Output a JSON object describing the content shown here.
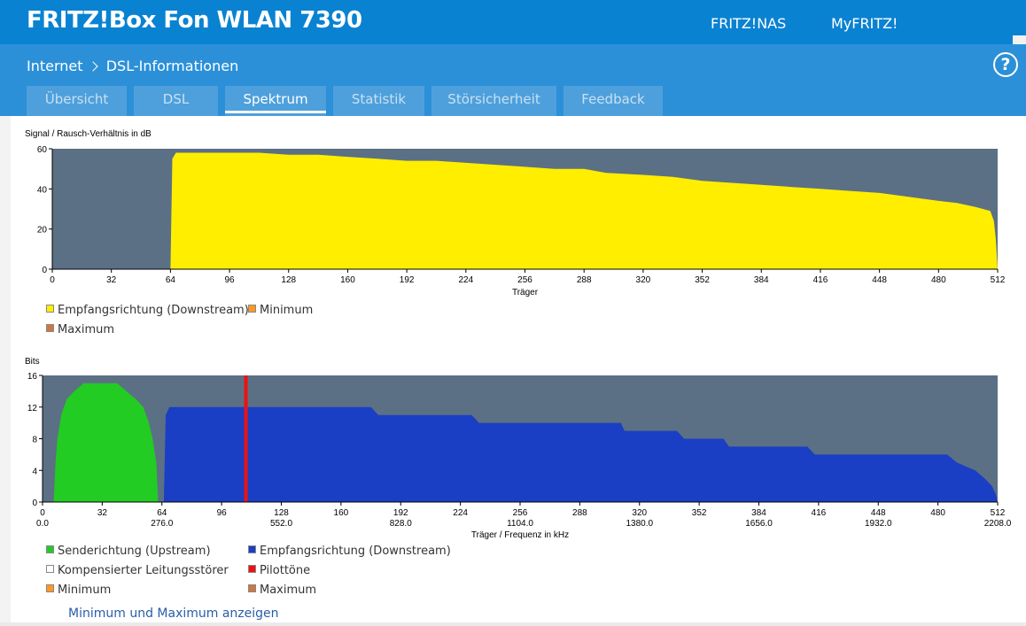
{
  "header": {
    "title": "FRITZ!Box Fon WLAN 7390",
    "links": [
      "FRITZ!NAS",
      "MyFRITZ!"
    ]
  },
  "breadcrumb": {
    "parent": "Internet",
    "current": "DSL-Informationen"
  },
  "tabs": [
    {
      "label": "Übersicht",
      "active": false
    },
    {
      "label": "DSL",
      "active": false
    },
    {
      "label": "Spektrum",
      "active": true
    },
    {
      "label": "Statistik",
      "active": false
    },
    {
      "label": "Störsicherheit",
      "active": false
    },
    {
      "label": "Feedback",
      "active": false
    }
  ],
  "colors": {
    "header_blue": "#0a82d2",
    "plot_bg": "#5b7085",
    "downstream_snr": "#ffee00",
    "upstream": "#22cc22",
    "downstream_bits": "#1a3fc4",
    "pilot": "#ee1111",
    "minimum": "#ff9922",
    "maximum": "#cc7744"
  },
  "chart_data": [
    {
      "type": "area",
      "title": "Signal / Rausch-Verhältnis in dB",
      "xlabel": "Träger",
      "xlim": [
        0,
        512
      ],
      "ylim": [
        0,
        60
      ],
      "xticks": [
        0,
        32,
        64,
        96,
        128,
        160,
        192,
        224,
        256,
        288,
        320,
        352,
        384,
        416,
        448,
        480,
        512
      ],
      "yticks": [
        0,
        20,
        40,
        60
      ],
      "series": [
        {
          "name": "Empfangsrichtung (Downstream)",
          "color": "#ffee00",
          "points": [
            [
              64,
              0
            ],
            [
              65,
              55
            ],
            [
              67,
              58
            ],
            [
              80,
              58
            ],
            [
              96,
              58
            ],
            [
              112,
              58
            ],
            [
              128,
              57
            ],
            [
              144,
              57
            ],
            [
              160,
              56
            ],
            [
              176,
              55
            ],
            [
              192,
              54
            ],
            [
              208,
              54
            ],
            [
              224,
              53
            ],
            [
              240,
              52
            ],
            [
              256,
              51
            ],
            [
              272,
              50
            ],
            [
              288,
              50
            ],
            [
              300,
              48
            ],
            [
              320,
              47
            ],
            [
              336,
              46
            ],
            [
              352,
              44
            ],
            [
              368,
              43
            ],
            [
              384,
              42
            ],
            [
              400,
              41
            ],
            [
              416,
              40
            ],
            [
              432,
              39
            ],
            [
              448,
              38
            ],
            [
              464,
              36
            ],
            [
              480,
              34
            ],
            [
              490,
              33
            ],
            [
              500,
              31
            ],
            [
              508,
              29
            ],
            [
              510,
              24
            ],
            [
              511,
              15
            ],
            [
              512,
              0
            ]
          ]
        }
      ],
      "legend": [
        {
          "label": "Empfangsrichtung (Downstream)",
          "color": "#ffee00"
        },
        {
          "label": "Minimum",
          "color": "#ff9922"
        },
        {
          "label": "Maximum",
          "color": "#cc7744"
        }
      ]
    },
    {
      "type": "area",
      "title": "Bits",
      "xlabel": "Träger / Frequenz in kHz",
      "xlim": [
        0,
        512
      ],
      "ylim": [
        0,
        16
      ],
      "xticks": [
        0,
        32,
        64,
        96,
        128,
        160,
        192,
        224,
        256,
        288,
        320,
        352,
        384,
        416,
        448,
        480,
        512
      ],
      "freq_ticks": [
        "0.0",
        "276.0",
        "552.0",
        "828.0",
        "1104.0",
        "1380.0",
        "1656.0",
        "1932.0",
        "2208.0"
      ],
      "yticks": [
        0,
        4,
        8,
        12,
        16
      ],
      "pilot_carrier": 109,
      "series": [
        {
          "name": "Senderichtung (Upstream)",
          "color": "#22cc22",
          "points": [
            [
              6,
              0
            ],
            [
              7,
              5
            ],
            [
              8,
              8
            ],
            [
              10,
              11
            ],
            [
              13,
              13
            ],
            [
              17,
              14
            ],
            [
              22,
              15
            ],
            [
              40,
              15
            ],
            [
              45,
              14
            ],
            [
              50,
              13
            ],
            [
              54,
              12
            ],
            [
              57,
              10
            ],
            [
              59,
              8
            ],
            [
              61,
              5
            ],
            [
              62,
              0
            ]
          ]
        },
        {
          "name": "Empfangsrichtung (Downstream)",
          "color": "#1a3fc4",
          "points": [
            [
              65,
              0
            ],
            [
              66,
              11
            ],
            [
              68,
              12
            ],
            [
              176,
              12
            ],
            [
              180,
              11
            ],
            [
              230,
              11
            ],
            [
              234,
              10
            ],
            [
              310,
              10
            ],
            [
              312,
              9
            ],
            [
              340,
              9
            ],
            [
              344,
              8
            ],
            [
              365,
              8
            ],
            [
              368,
              7
            ],
            [
              410,
              7
            ],
            [
              414,
              6
            ],
            [
              485,
              6
            ],
            [
              490,
              5
            ],
            [
              500,
              4
            ],
            [
              505,
              3
            ],
            [
              509,
              2
            ],
            [
              511,
              1
            ],
            [
              512,
              0
            ]
          ]
        }
      ],
      "legend": [
        {
          "label": "Senderichtung (Upstream)",
          "color": "#22cc22"
        },
        {
          "label": "Empfangsrichtung (Downstream)",
          "color": "#1a3fc4"
        },
        {
          "label": "Kompensierter Leitungsstörer",
          "color": "#ffffff"
        },
        {
          "label": "Pilottöne",
          "color": "#ee1111"
        },
        {
          "label": "Minimum",
          "color": "#ff9922"
        },
        {
          "label": "Maximum",
          "color": "#cc7744"
        }
      ]
    }
  ],
  "actions": {
    "show_minmax": "Minimum und Maximum anzeigen"
  }
}
